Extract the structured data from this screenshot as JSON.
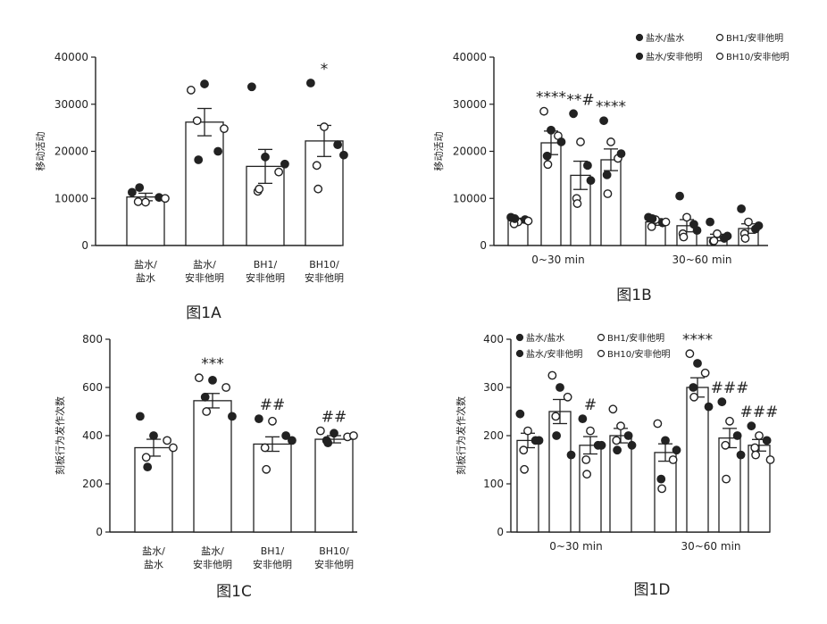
{
  "chart_data": [
    {
      "id": "1A",
      "type": "bar",
      "title": "图1A",
      "ylabel": "移动活动",
      "ylim": [
        0,
        40000
      ],
      "yticks": [
        "0",
        "10000",
        "20000",
        "30000",
        "40000"
      ],
      "categories": [
        [
          "盐水/",
          "盐水"
        ],
        [
          "盐水/",
          "安非他明"
        ],
        [
          "BH1/",
          "安非他明"
        ],
        [
          "BH10/",
          "安非他明"
        ]
      ],
      "values": [
        10300,
        26200,
        16800,
        22200
      ],
      "errors": [
        800,
        2900,
        3600,
        3300
      ],
      "markers": [
        "",
        "",
        "",
        "*"
      ],
      "points": [
        [
          {
            "y": 11300,
            "f": 1
          },
          {
            "y": 9200,
            "f": 0
          },
          {
            "y": 10200,
            "f": 1
          },
          {
            "y": 9300,
            "f": 0
          },
          {
            "y": 12300,
            "f": 1
          },
          {
            "y": 10000,
            "f": 0
          }
        ],
        [
          {
            "y": 33000,
            "f": 0
          },
          {
            "y": 34300,
            "f": 1
          },
          {
            "y": 20000,
            "f": 1
          },
          {
            "y": 26500,
            "f": 0
          },
          {
            "y": 18200,
            "f": 1
          },
          {
            "y": 24800,
            "f": 0
          }
        ],
        [
          {
            "y": 33700,
            "f": 1
          },
          {
            "y": 18800,
            "f": 1
          },
          {
            "y": 15600,
            "f": 0
          },
          {
            "y": 11500,
            "f": 0
          },
          {
            "y": 12000,
            "f": 0
          },
          {
            "y": 17300,
            "f": 1
          }
        ],
        [
          {
            "y": 34500,
            "f": 1
          },
          {
            "y": 25200,
            "f": 0
          },
          {
            "y": 21400,
            "f": 1
          },
          {
            "y": 17000,
            "f": 0
          },
          {
            "y": 12000,
            "f": 0
          },
          {
            "y": 19200,
            "f": 1
          }
        ]
      ]
    },
    {
      "id": "1B",
      "type": "bar",
      "title": "图1B",
      "ylabel": "移动活动",
      "ylim": [
        0,
        40000
      ],
      "yticks": [
        "0",
        "10000",
        "20000",
        "30000",
        "40000"
      ],
      "groups": [
        "0~30 min",
        "30~60 min"
      ],
      "legend": [
        "盐水/盐水",
        "BH1/安非他明",
        "盐水/安非他明",
        "BH10/安非他明"
      ],
      "values": [
        [
          5300,
          21800,
          14900,
          18200
        ],
        [
          5000,
          4200,
          1700,
          3600
        ]
      ],
      "errors": [
        [
          500,
          2500,
          3000,
          2300
        ],
        [
          700,
          1300,
          700,
          1000
        ]
      ],
      "markers": [
        [
          "",
          "****",
          "**#",
          "****"
        ],
        [
          "",
          "",
          "",
          ""
        ]
      ],
      "points": [
        [
          [
            {
              "y": 6000,
              "f": 1
            },
            {
              "y": 5000,
              "f": 0
            },
            {
              "y": 5500,
              "f": 1
            },
            {
              "y": 4600,
              "f": 0
            },
            {
              "y": 5700,
              "f": 1
            },
            {
              "y": 5200,
              "f": 0
            }
          ],
          [
            {
              "y": 28500,
              "f": 0
            },
            {
              "y": 24500,
              "f": 1
            },
            {
              "y": 23300,
              "f": 0
            },
            {
              "y": 19000,
              "f": 1
            },
            {
              "y": 17200,
              "f": 0
            },
            {
              "y": 22000,
              "f": 1
            }
          ],
          [
            {
              "y": 28000,
              "f": 1
            },
            {
              "y": 22000,
              "f": 0
            },
            {
              "y": 17000,
              "f": 1
            },
            {
              "y": 10000,
              "f": 0
            },
            {
              "y": 8900,
              "f": 0
            },
            {
              "y": 13800,
              "f": 1
            }
          ],
          [
            {
              "y": 26500,
              "f": 1
            },
            {
              "y": 22000,
              "f": 0
            },
            {
              "y": 18500,
              "f": 0
            },
            {
              "y": 15000,
              "f": 1
            },
            {
              "y": 11000,
              "f": 0
            },
            {
              "y": 19500,
              "f": 1
            }
          ]
        ],
        [
          [
            {
              "y": 6000,
              "f": 1
            },
            {
              "y": 5500,
              "f": 0
            },
            {
              "y": 4800,
              "f": 1
            },
            {
              "y": 4000,
              "f": 0
            },
            {
              "y": 5700,
              "f": 1
            },
            {
              "y": 5000,
              "f": 0
            }
          ],
          [
            {
              "y": 10500,
              "f": 1
            },
            {
              "y": 6000,
              "f": 0
            },
            {
              "y": 4500,
              "f": 1
            },
            {
              "y": 2500,
              "f": 0
            },
            {
              "y": 1800,
              "f": 0
            },
            {
              "y": 3200,
              "f": 1
            }
          ],
          [
            {
              "y": 5000,
              "f": 1
            },
            {
              "y": 2500,
              "f": 0
            },
            {
              "y": 1500,
              "f": 1
            },
            {
              "y": 900,
              "f": 0
            },
            {
              "y": 1000,
              "f": 0
            },
            {
              "y": 2000,
              "f": 1
            }
          ],
          [
            {
              "y": 7800,
              "f": 1
            },
            {
              "y": 5000,
              "f": 0
            },
            {
              "y": 3500,
              "f": 1
            },
            {
              "y": 2500,
              "f": 0
            },
            {
              "y": 1500,
              "f": 0
            },
            {
              "y": 4200,
              "f": 1
            }
          ]
        ]
      ]
    },
    {
      "id": "1C",
      "type": "bar",
      "title": "图1C",
      "ylabel": "刻板行为发作次数",
      "ylim": [
        0,
        800
      ],
      "yticks": [
        "0",
        "200",
        "400",
        "600",
        "800"
      ],
      "categories": [
        [
          "盐水/",
          "盐水"
        ],
        [
          "盐水/",
          "安非他明"
        ],
        [
          "BH1/",
          "安非他明"
        ],
        [
          "BH10/",
          "安非他明"
        ]
      ],
      "values": [
        350,
        545,
        365,
        385
      ],
      "errors": [
        35,
        30,
        30,
        15
      ],
      "markers": [
        "",
        "***",
        "##",
        "##"
      ],
      "points": [
        [
          {
            "y": 480,
            "f": 1
          },
          {
            "y": 400,
            "f": 1
          },
          {
            "y": 380,
            "f": 0
          },
          {
            "y": 310,
            "f": 0
          },
          {
            "y": 270,
            "f": 1
          },
          {
            "y": 350,
            "f": 0
          }
        ],
        [
          {
            "y": 640,
            "f": 0
          },
          {
            "y": 630,
            "f": 1
          },
          {
            "y": 600,
            "f": 0
          },
          {
            "y": 560,
            "f": 1
          },
          {
            "y": 500,
            "f": 0
          },
          {
            "y": 480,
            "f": 1
          }
        ],
        [
          {
            "y": 470,
            "f": 1
          },
          {
            "y": 460,
            "f": 0
          },
          {
            "y": 400,
            "f": 1
          },
          {
            "y": 350,
            "f": 0
          },
          {
            "y": 260,
            "f": 0
          },
          {
            "y": 380,
            "f": 1
          }
        ],
        [
          {
            "y": 420,
            "f": 0
          },
          {
            "y": 410,
            "f": 1
          },
          {
            "y": 395,
            "f": 0
          },
          {
            "y": 380,
            "f": 1
          },
          {
            "y": 370,
            "f": 1
          },
          {
            "y": 400,
            "f": 0
          }
        ]
      ]
    },
    {
      "id": "1D",
      "type": "bar",
      "title": "图1D",
      "ylabel": "刻板行为发作次数",
      "ylim": [
        0,
        400
      ],
      "yticks": [
        "0",
        "100",
        "200",
        "300",
        "400"
      ],
      "groups": [
        "0~30 min",
        "30~60 min"
      ],
      "legend": [
        "盐水/盐水",
        "BH1/安非他明",
        "盐水/安非他明",
        "BH10/安非他明"
      ],
      "values": [
        [
          190,
          250,
          180,
          200
        ],
        [
          165,
          300,
          195,
          180
        ]
      ],
      "errors": [
        [
          15,
          25,
          18,
          15
        ],
        [
          18,
          20,
          20,
          12
        ]
      ],
      "markers": [
        [
          "",
          "",
          "#",
          ""
        ],
        [
          "",
          "****",
          "###",
          "###"
        ]
      ],
      "points": [
        [
          [
            {
              "y": 245,
              "f": 1
            },
            {
              "y": 210,
              "f": 0
            },
            {
              "y": 190,
              "f": 1
            },
            {
              "y": 170,
              "f": 0
            },
            {
              "y": 130,
              "f": 0
            },
            {
              "y": 190,
              "f": 1
            }
          ],
          [
            {
              "y": 325,
              "f": 0
            },
            {
              "y": 300,
              "f": 1
            },
            {
              "y": 280,
              "f": 0
            },
            {
              "y": 240,
              "f": 0
            },
            {
              "y": 200,
              "f": 1
            },
            {
              "y": 160,
              "f": 1
            }
          ],
          [
            {
              "y": 235,
              "f": 1
            },
            {
              "y": 210,
              "f": 0
            },
            {
              "y": 180,
              "f": 1
            },
            {
              "y": 150,
              "f": 0
            },
            {
              "y": 120,
              "f": 0
            },
            {
              "y": 180,
              "f": 1
            }
          ],
          [
            {
              "y": 255,
              "f": 0
            },
            {
              "y": 220,
              "f": 0
            },
            {
              "y": 200,
              "f": 1
            },
            {
              "y": 190,
              "f": 0
            },
            {
              "y": 170,
              "f": 1
            },
            {
              "y": 180,
              "f": 1
            }
          ]
        ],
        [
          [
            {
              "y": 225,
              "f": 0
            },
            {
              "y": 190,
              "f": 1
            },
            {
              "y": 150,
              "f": 0
            },
            {
              "y": 110,
              "f": 1
            },
            {
              "y": 90,
              "f": 0
            },
            {
              "y": 170,
              "f": 1
            }
          ],
          [
            {
              "y": 370,
              "f": 0
            },
            {
              "y": 350,
              "f": 1
            },
            {
              "y": 330,
              "f": 0
            },
            {
              "y": 300,
              "f": 1
            },
            {
              "y": 280,
              "f": 0
            },
            {
              "y": 260,
              "f": 1
            }
          ],
          [
            {
              "y": 270,
              "f": 1
            },
            {
              "y": 230,
              "f": 0
            },
            {
              "y": 200,
              "f": 1
            },
            {
              "y": 180,
              "f": 0
            },
            {
              "y": 110,
              "f": 0
            },
            {
              "y": 160,
              "f": 1
            }
          ],
          [
            {
              "y": 220,
              "f": 1
            },
            {
              "y": 200,
              "f": 0
            },
            {
              "y": 190,
              "f": 1
            },
            {
              "y": 175,
              "f": 0
            },
            {
              "y": 160,
              "f": 0
            },
            {
              "y": 150,
              "f": 0
            }
          ]
        ]
      ]
    }
  ]
}
